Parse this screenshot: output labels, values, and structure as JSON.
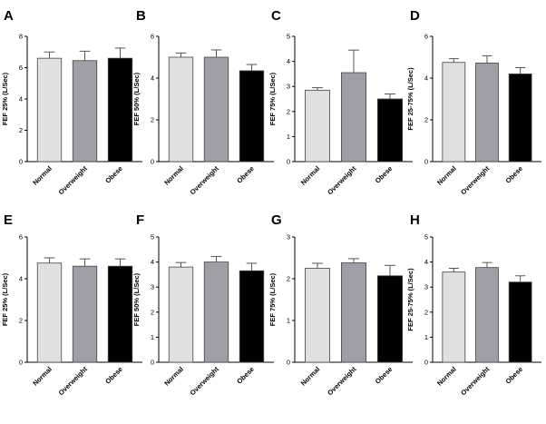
{
  "chart_data": [
    {
      "panel": "A",
      "type": "bar",
      "ylabel": "FEF 25% (L/Sec)",
      "ylim": [
        0,
        8
      ],
      "yticks": [
        0,
        2,
        4,
        6,
        8
      ],
      "categories": [
        "Normal",
        "Overweight",
        "Obese"
      ],
      "values": [
        6.6,
        6.45,
        6.6
      ],
      "errors": [
        0.4,
        0.6,
        0.65
      ]
    },
    {
      "panel": "B",
      "type": "bar",
      "ylabel": "FEF 50% (L/Sec)",
      "ylim": [
        0,
        6
      ],
      "yticks": [
        0,
        2,
        4,
        6
      ],
      "categories": [
        "Normal",
        "Overweight",
        "Obese"
      ],
      "values": [
        5.0,
        5.0,
        4.35
      ],
      "errors": [
        0.2,
        0.35,
        0.3
      ]
    },
    {
      "panel": "C",
      "type": "bar",
      "ylabel": "FEF 75% (L/Sec)",
      "ylim": [
        0,
        5
      ],
      "yticks": [
        0,
        1,
        2,
        3,
        4,
        5
      ],
      "categories": [
        "Normal",
        "Overweight",
        "Obese"
      ],
      "values": [
        2.85,
        3.55,
        2.5
      ],
      "errors": [
        0.1,
        0.9,
        0.2
      ]
    },
    {
      "panel": "D",
      "type": "bar",
      "ylabel": "FEF 25-75% (L/Sec)",
      "ylim": [
        0,
        6
      ],
      "yticks": [
        0,
        2,
        4,
        6
      ],
      "categories": [
        "Normal",
        "Overweight",
        "Obese"
      ],
      "values": [
        4.75,
        4.72,
        4.2
      ],
      "errors": [
        0.18,
        0.35,
        0.3
      ]
    },
    {
      "panel": "E",
      "type": "bar",
      "ylabel": "FEF 25% (L/Sec)",
      "ylim": [
        0,
        6
      ],
      "yticks": [
        0,
        2,
        4,
        6
      ],
      "categories": [
        "Normal",
        "Overweight",
        "Obese"
      ],
      "values": [
        4.75,
        4.6,
        4.6
      ],
      "errors": [
        0.25,
        0.35,
        0.35
      ]
    },
    {
      "panel": "F",
      "type": "bar",
      "ylabel": "FEF 50% (L/Sec)",
      "ylim": [
        0,
        5
      ],
      "yticks": [
        0,
        1,
        2,
        3,
        4,
        5
      ],
      "categories": [
        "Normal",
        "Overweight",
        "Obese"
      ],
      "values": [
        3.8,
        4.0,
        3.65
      ],
      "errors": [
        0.18,
        0.22,
        0.3
      ]
    },
    {
      "panel": "G",
      "type": "bar",
      "ylabel": "FEF 75% (L/Sec)",
      "ylim": [
        0,
        3
      ],
      "yticks": [
        0,
        1,
        2,
        3
      ],
      "categories": [
        "Normal",
        "Overweight",
        "Obese"
      ],
      "values": [
        2.25,
        2.38,
        2.07
      ],
      "errors": [
        0.12,
        0.1,
        0.25
      ]
    },
    {
      "panel": "H",
      "type": "bar",
      "ylabel": "FEF 25-75% (L/Sec)",
      "ylim": [
        0,
        5
      ],
      "yticks": [
        0,
        1,
        2,
        3,
        4,
        5
      ],
      "categories": [
        "Normal",
        "Overweight",
        "Obese"
      ],
      "values": [
        3.6,
        3.78,
        3.2
      ],
      "errors": [
        0.15,
        0.2,
        0.25
      ]
    }
  ],
  "bar_colors": [
    "#e0e0e0",
    "#9e9ea6",
    "#000000"
  ]
}
